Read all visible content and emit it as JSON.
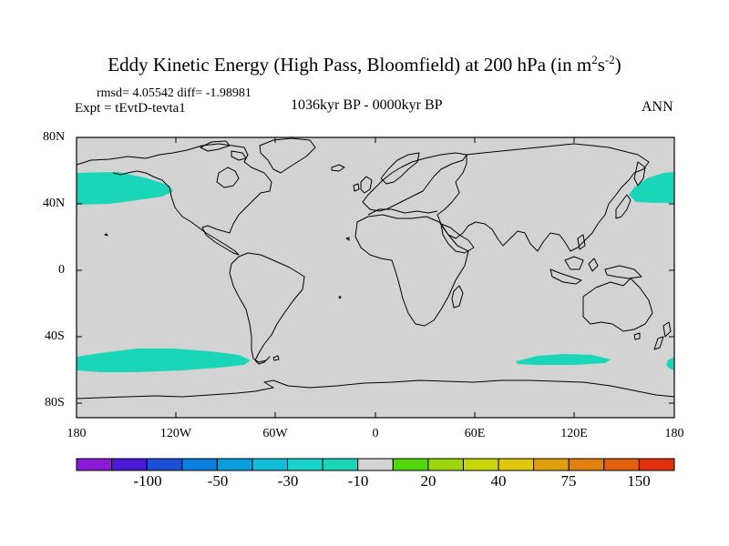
{
  "title": {
    "main": "Eddy Kinetic Energy (High Pass, Bloomfield) at 200 hPa (in m",
    "exp1": "2",
    "s": "s",
    "exp2": "-2",
    "close": ")"
  },
  "stats": "rmsd= 4.05542 diff= -1.98981",
  "expt": "Expt = tEvtD-tevta1",
  "period": "1036kyr BP - 0000kyr BP",
  "season": "ANN",
  "map": {
    "land_color": "#d3d3d3",
    "ocean_color": "#d3d3d3",
    "lat_labels": [
      "80N",
      "40N",
      "0",
      "40S",
      "80S"
    ],
    "lon_labels": [
      "180",
      "120W",
      "60W",
      "0",
      "60E",
      "120E",
      "180"
    ],
    "anomaly_regions": [
      {
        "name": "North Pacific (east)",
        "category": "-10 to -30",
        "color": "#1ad6b8"
      },
      {
        "name": "North Pacific (west)",
        "category": "-10 to -30",
        "color": "#1ad6b8"
      },
      {
        "name": "South Pacific",
        "category": "-10 to -30",
        "color": "#1ad6b8"
      },
      {
        "name": "South Indian Ocean",
        "category": "-10 to -30",
        "color": "#1ad6b8"
      },
      {
        "name": "Southwest Pacific edge",
        "category": "-10 to -30",
        "color": "#1ad6b8"
      }
    ]
  },
  "colorbar": {
    "colors": [
      "#8a1ad6",
      "#4a1ad6",
      "#1a4fd6",
      "#0a7fe0",
      "#0aa0e0",
      "#10bcd8",
      "#18d2cc",
      "#1ad6b8",
      "#d3d3d3",
      "#52d60e",
      "#9ed60e",
      "#c8d60e",
      "#e0c80e",
      "#e0a00e",
      "#e0800e",
      "#e0600e",
      "#e0300e"
    ],
    "labels": [
      "-100",
      "-50",
      "-30",
      "-10",
      "20",
      "40",
      "75",
      "150"
    ]
  }
}
